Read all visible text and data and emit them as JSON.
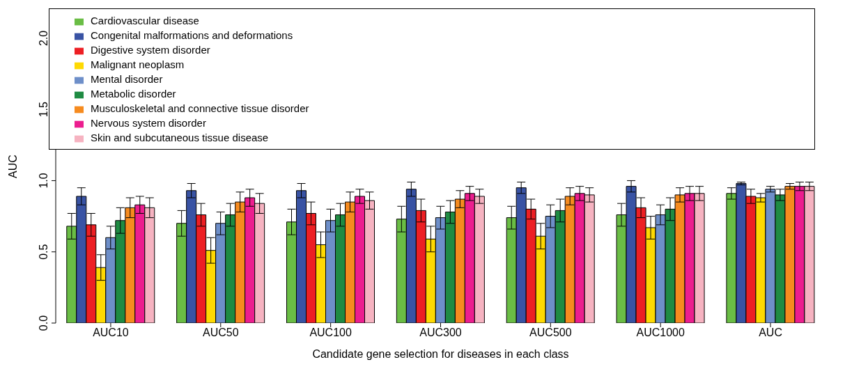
{
  "chart_data": {
    "type": "bar",
    "xlabel": "Candidate gene selection for diseases in each class",
    "ylabel": "AUC",
    "categories": [
      "AUC10",
      "AUC50",
      "AUC100",
      "AUC300",
      "AUC500",
      "AUC1000",
      "AUC"
    ],
    "ylim": [
      0,
      2.2
    ],
    "yticks": [
      {
        "value": 0,
        "label": "0.0"
      },
      {
        "value": 0.5,
        "label": "0.5"
      },
      {
        "value": 1,
        "label": "1.0"
      },
      {
        "value": 1.5,
        "label": "1.5"
      },
      {
        "value": 2,
        "label": "2.0"
      }
    ],
    "grid": false,
    "legend": "top",
    "series": [
      {
        "name": "Cardiovascular disease",
        "color": "#6abd45",
        "values": [
          0.68,
          0.7,
          0.71,
          0.73,
          0.74,
          0.76,
          0.91
        ],
        "errors": [
          0.09,
          0.09,
          0.09,
          0.09,
          0.08,
          0.08,
          0.04
        ]
      },
      {
        "name": "Congenital malformations and deformations",
        "color": "#3953a4",
        "values": [
          0.89,
          0.93,
          0.93,
          0.94,
          0.95,
          0.96,
          0.98
        ],
        "errors": [
          0.06,
          0.05,
          0.05,
          0.05,
          0.04,
          0.04,
          0.01
        ]
      },
      {
        "name": "Digestive system disorder",
        "color": "#ed1f24",
        "values": [
          0.69,
          0.76,
          0.77,
          0.79,
          0.8,
          0.81,
          0.89
        ],
        "errors": [
          0.08,
          0.08,
          0.08,
          0.08,
          0.07,
          0.07,
          0.05
        ]
      },
      {
        "name": "Malignant neoplasm",
        "color": "#fed903",
        "values": [
          0.39,
          0.51,
          0.55,
          0.59,
          0.61,
          0.67,
          0.88
        ],
        "errors": [
          0.09,
          0.09,
          0.09,
          0.09,
          0.09,
          0.08,
          0.03
        ]
      },
      {
        "name": "Mental disorder",
        "color": "#6e8fc9",
        "values": [
          0.6,
          0.7,
          0.72,
          0.74,
          0.75,
          0.76,
          0.94
        ],
        "errors": [
          0.08,
          0.08,
          0.08,
          0.08,
          0.08,
          0.07,
          0.02
        ]
      },
      {
        "name": "Metabolic disorder",
        "color": "#1f8b43",
        "values": [
          0.72,
          0.76,
          0.76,
          0.78,
          0.79,
          0.8,
          0.9
        ],
        "errors": [
          0.09,
          0.08,
          0.08,
          0.08,
          0.08,
          0.08,
          0.04
        ]
      },
      {
        "name": "Musculoskeletal and connective tissue disorder",
        "color": "#f68b1f",
        "values": [
          0.81,
          0.85,
          0.85,
          0.87,
          0.89,
          0.9,
          0.96
        ],
        "errors": [
          0.07,
          0.07,
          0.07,
          0.06,
          0.06,
          0.05,
          0.02
        ]
      },
      {
        "name": "Nervous system disorder",
        "color": "#ec1e8f",
        "values": [
          0.83,
          0.88,
          0.89,
          0.91,
          0.91,
          0.91,
          0.96
        ],
        "errors": [
          0.06,
          0.06,
          0.05,
          0.05,
          0.05,
          0.05,
          0.03
        ]
      },
      {
        "name": "Skin and subcutaneous tissue disease",
        "color": "#f6b3c1",
        "values": [
          0.81,
          0.84,
          0.86,
          0.89,
          0.9,
          0.91,
          0.96
        ],
        "errors": [
          0.07,
          0.07,
          0.06,
          0.05,
          0.05,
          0.05,
          0.03
        ]
      }
    ]
  }
}
